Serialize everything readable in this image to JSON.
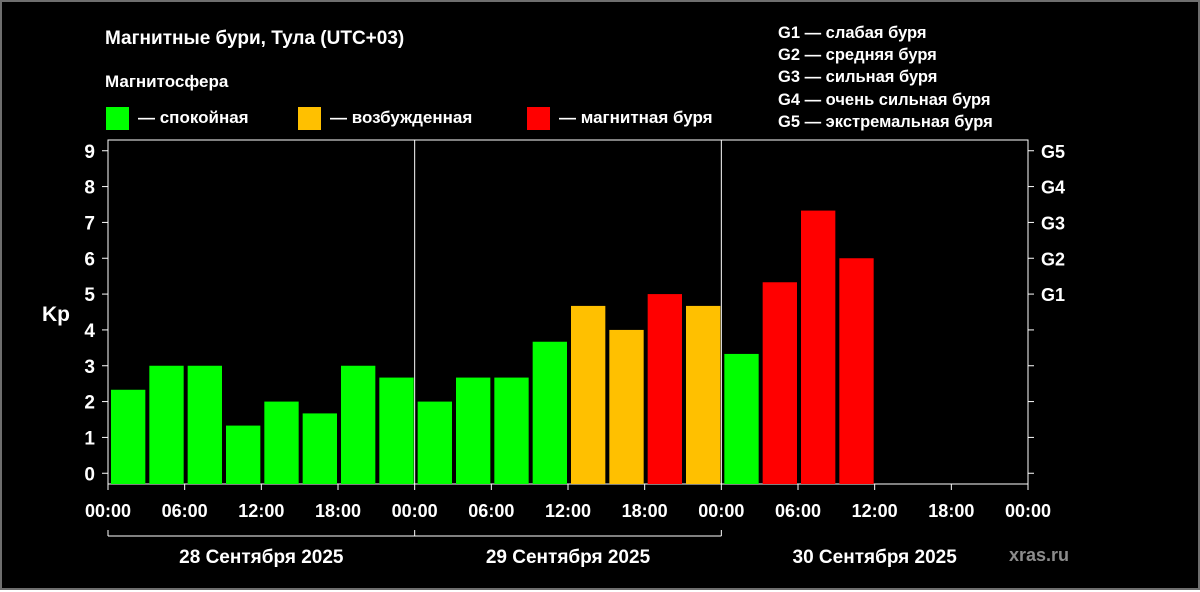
{
  "header": {
    "title": "Магнитные бури, Тула (UTC+03)",
    "subtitle": "Магнитосфера"
  },
  "legend": [
    {
      "label": "— спокойная",
      "color": "#00ff00"
    },
    {
      "label": "— возбужденная",
      "color": "#ffc000"
    },
    {
      "label": "— магнитная буря",
      "color": "#ff0000"
    }
  ],
  "g_scale": [
    "G1 — слабая буря",
    "G2 — средняя буря",
    "G3 — сильная буря",
    "G4 — очень сильная буря",
    "G5 — экстремальная буря"
  ],
  "watermark": "xras.ru",
  "chart_data": {
    "type": "bar",
    "ylabel": "Kp",
    "ylim": [
      0,
      9
    ],
    "yticks": [
      "0",
      "1",
      "2",
      "3",
      "4",
      "5",
      "6",
      "7",
      "8",
      "9"
    ],
    "right_ticks": [
      {
        "value": 5,
        "label": "G1"
      },
      {
        "value": 6,
        "label": "G2"
      },
      {
        "value": 7,
        "label": "G3"
      },
      {
        "value": 8,
        "label": "G4"
      },
      {
        "value": 9,
        "label": "G5"
      }
    ],
    "xticks": [
      "00:00",
      "06:00",
      "12:00",
      "18:00",
      "00:00",
      "06:00",
      "12:00",
      "18:00",
      "00:00",
      "06:00",
      "12:00",
      "18:00",
      "00:00"
    ],
    "days": [
      "28 Сентября 2025",
      "29 Сентября 2025",
      "30 Сентября 2025"
    ],
    "interval_hours": 3,
    "values": [
      2.33,
      3.0,
      3.0,
      1.33,
      2.0,
      1.67,
      3.0,
      2.67,
      2.0,
      2.67,
      2.67,
      3.67,
      4.67,
      4.0,
      5.0,
      4.67,
      3.33,
      5.33,
      7.33,
      6.0
    ],
    "levels": [
      "quiet",
      "quiet",
      "quiet",
      "quiet",
      "quiet",
      "quiet",
      "quiet",
      "quiet",
      "quiet",
      "quiet",
      "quiet",
      "quiet",
      "active",
      "active",
      "storm",
      "active",
      "quiet",
      "storm",
      "storm",
      "storm"
    ],
    "level_colors": {
      "quiet": "#00ff00",
      "active": "#ffc000",
      "storm": "#ff0000"
    },
    "grid": false
  }
}
